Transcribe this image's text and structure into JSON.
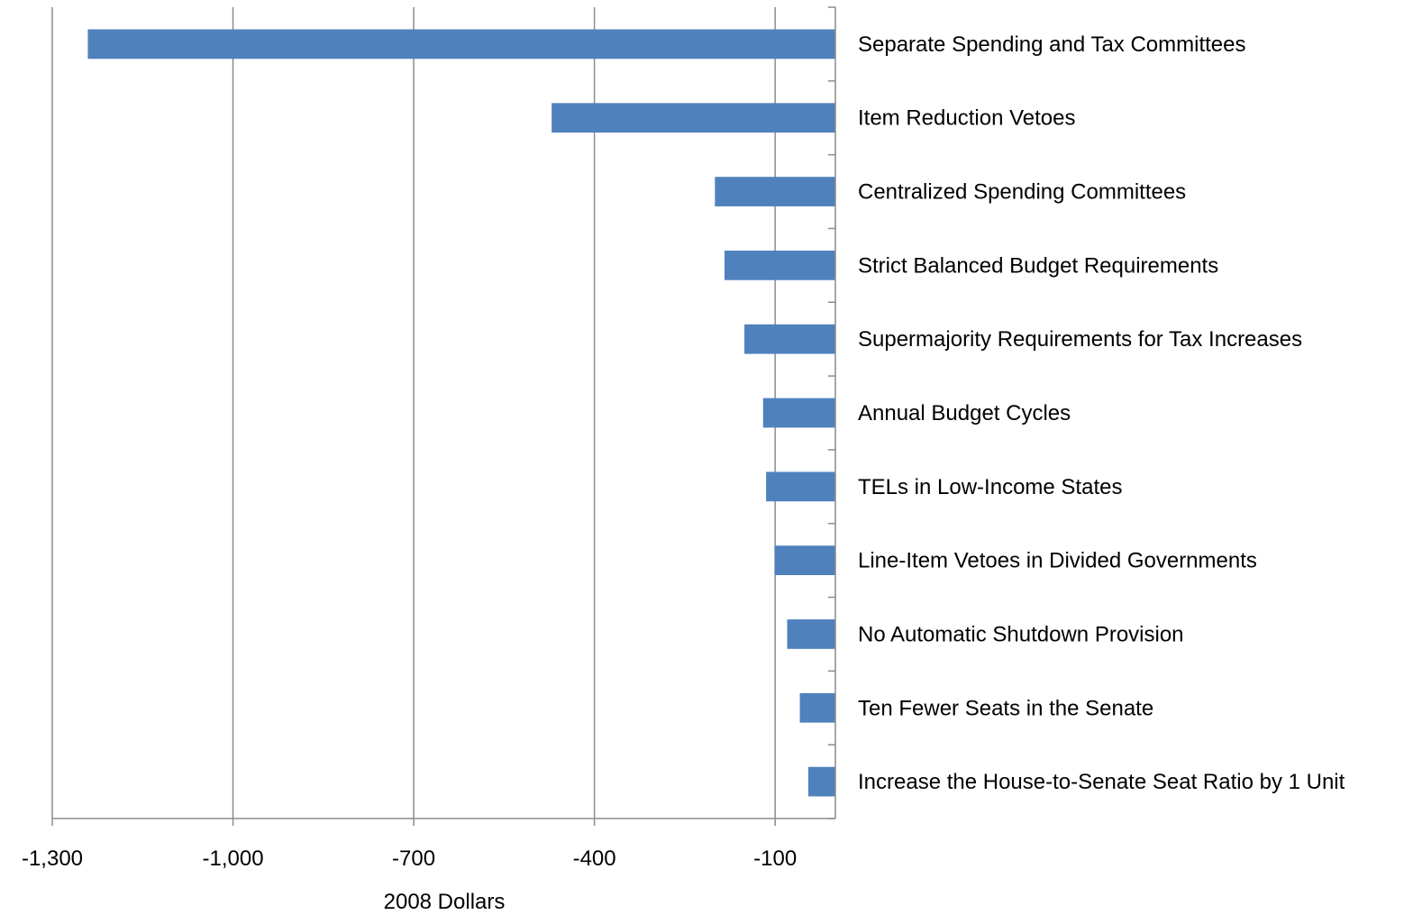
{
  "chart_data": {
    "type": "bar",
    "orientation": "horizontal",
    "categories": [
      "Separate Spending and Tax Committees",
      "Item Reduction Vetoes",
      "Centralized Spending Committees",
      "Strict Balanced Budget Requirements",
      "Supermajority Requirements for Tax Increases",
      "Annual Budget Cycles",
      "TELs in Low-Income States",
      "Line-Item Vetoes in Divided Governments",
      "No Automatic Shutdown Provision",
      "Ten Fewer Seats in the Senate",
      "Increase the House-to-Senate Seat Ratio by 1 Unit"
    ],
    "values": [
      -1241,
      -471,
      -200,
      -184,
      -151,
      -120,
      -115,
      -101,
      -80,
      -59,
      -45
    ],
    "xlabel": "2008 Dollars",
    "ylabel": "",
    "title": "",
    "xlim": [
      -1300,
      0
    ],
    "xticks": [
      -1300,
      -1000,
      -700,
      -400,
      -100
    ],
    "xtick_labels": [
      "-1,300",
      "-1,000",
      "-700",
      "-400",
      "-100"
    ],
    "grid": true,
    "legend": "none",
    "bar_color": "#4F81BD"
  }
}
